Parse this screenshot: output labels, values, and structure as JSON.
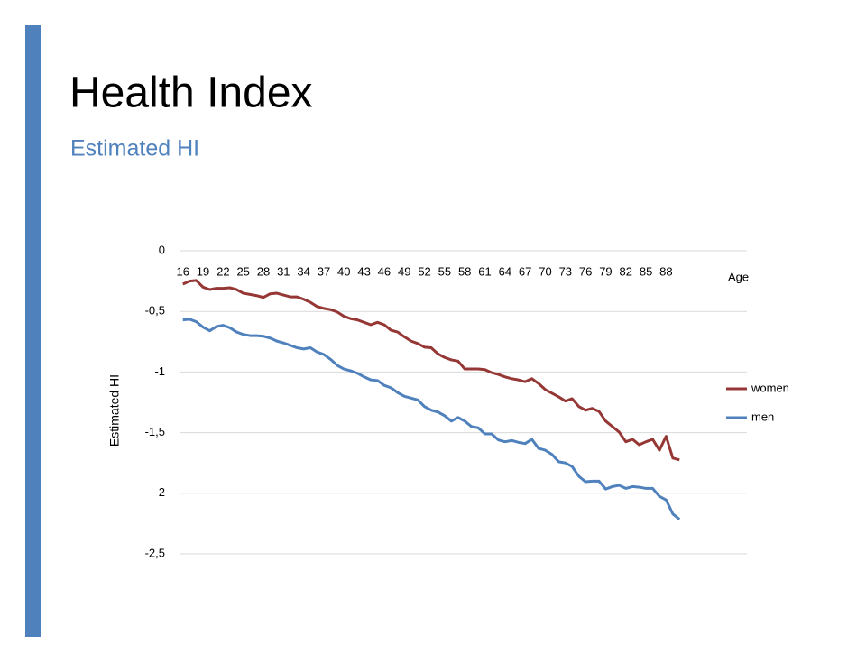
{
  "header": {
    "title": "Health Index",
    "subtitle": "Estimated HI"
  },
  "chart_data": {
    "type": "line",
    "x_label": "Age",
    "y_label": "Estimated HI",
    "categories": [
      "16",
      null,
      null,
      "19",
      null,
      null,
      "22",
      null,
      null,
      "25",
      null,
      null,
      "28",
      null,
      null,
      "31",
      null,
      null,
      "34",
      null,
      null,
      "37",
      null,
      null,
      "40",
      null,
      null,
      "43",
      null,
      null,
      "46",
      null,
      null,
      "49",
      null,
      null,
      "52",
      null,
      null,
      "55",
      null,
      null,
      "58",
      null,
      null,
      "61",
      null,
      null,
      "64",
      null,
      null,
      "67",
      null,
      null,
      "70",
      null,
      null,
      "73",
      null,
      null,
      "76",
      null,
      null,
      "79",
      null,
      null,
      "82",
      null,
      null,
      "85",
      null,
      null,
      "88",
      null,
      null
    ],
    "series": [
      {
        "name": "women",
        "color": "#953735",
        "values": [
          -0.275,
          -0.25,
          -0.245,
          -0.3,
          -0.32,
          -0.31,
          -0.31,
          -0.305,
          -0.32,
          -0.35,
          -0.36,
          -0.37,
          -0.385,
          -0.355,
          -0.35,
          -0.365,
          -0.38,
          -0.38,
          -0.4,
          -0.425,
          -0.46,
          -0.475,
          -0.485,
          -0.505,
          -0.54,
          -0.56,
          -0.57,
          -0.59,
          -0.61,
          -0.59,
          -0.61,
          -0.655,
          -0.67,
          -0.71,
          -0.745,
          -0.765,
          -0.795,
          -0.8,
          -0.85,
          -0.88,
          -0.9,
          -0.91,
          -0.975,
          -0.975,
          -0.975,
          -0.98,
          -1.005,
          -1.02,
          -1.04,
          -1.055,
          -1.065,
          -1.08,
          -1.055,
          -1.095,
          -1.145,
          -1.175,
          -1.205,
          -1.24,
          -1.22,
          -1.285,
          -1.315,
          -1.3,
          -1.325,
          -1.405,
          -1.45,
          -1.495,
          -1.575,
          -1.555,
          -1.6,
          -1.575,
          -1.555,
          -1.645,
          -1.53,
          -1.71,
          -1.725
        ]
      },
      {
        "name": "men",
        "color": "#4f81bd",
        "values": [
          -0.57,
          -0.565,
          -0.585,
          -0.63,
          -0.66,
          -0.625,
          -0.615,
          -0.635,
          -0.67,
          -0.69,
          -0.7,
          -0.7,
          -0.705,
          -0.72,
          -0.745,
          -0.76,
          -0.78,
          -0.8,
          -0.81,
          -0.8,
          -0.835,
          -0.855,
          -0.895,
          -0.945,
          -0.975,
          -0.99,
          -1.01,
          -1.04,
          -1.065,
          -1.07,
          -1.11,
          -1.13,
          -1.17,
          -1.2,
          -1.215,
          -1.23,
          -1.285,
          -1.315,
          -1.33,
          -1.36,
          -1.405,
          -1.375,
          -1.405,
          -1.45,
          -1.46,
          -1.51,
          -1.51,
          -1.56,
          -1.575,
          -1.565,
          -1.58,
          -1.59,
          -1.555,
          -1.63,
          -1.645,
          -1.68,
          -1.74,
          -1.75,
          -1.78,
          -1.86,
          -1.905,
          -1.9,
          -1.9,
          -1.965,
          -1.945,
          -1.935,
          -1.96,
          -1.945,
          -1.95,
          -1.96,
          -1.96,
          -2.025,
          -2.055,
          -2.17,
          -2.215
        ]
      }
    ],
    "ylim": [
      -2.5,
      0
    ],
    "yticks": [
      0,
      {
        "value": -0.5,
        "label": "-0,5"
      },
      -1,
      {
        "value": -1.5,
        "label": "-1,5"
      },
      -2,
      {
        "value": -2.5,
        "label": "-2,5"
      }
    ],
    "grid": true,
    "legend": "right"
  }
}
